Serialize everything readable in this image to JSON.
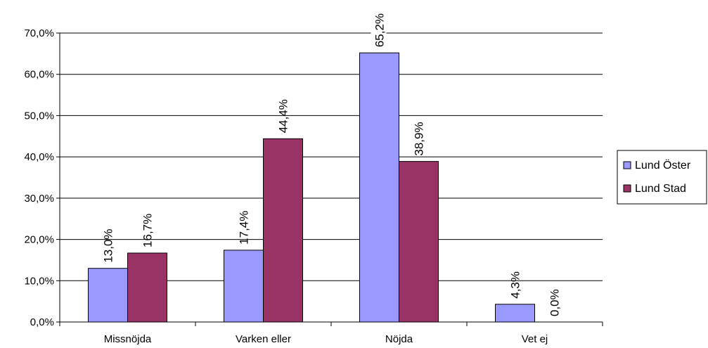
{
  "chart_data": {
    "type": "bar",
    "categories": [
      "Missnöjda",
      "Varken eller",
      "Nöjda",
      "Vet ej"
    ],
    "series": [
      {
        "name": "Lund Öster",
        "values": [
          13.0,
          17.4,
          65.2,
          4.3
        ],
        "labels": [
          "13,0%",
          "17,4%",
          "65,2%",
          "4,3%"
        ],
        "color": "#9999ff"
      },
      {
        "name": "Lund Stad",
        "values": [
          16.7,
          44.4,
          38.9,
          0.0
        ],
        "labels": [
          "16,7%",
          "44,4%",
          "38,9%",
          "0,0%"
        ],
        "color": "#993366"
      }
    ],
    "yticks": [
      "0,0%",
      "10,0%",
      "20,0%",
      "30,0%",
      "40,0%",
      "50,0%",
      "60,0%",
      "70,0%"
    ],
    "ylim": [
      0,
      70
    ],
    "grid": true,
    "legend_position": "right"
  }
}
